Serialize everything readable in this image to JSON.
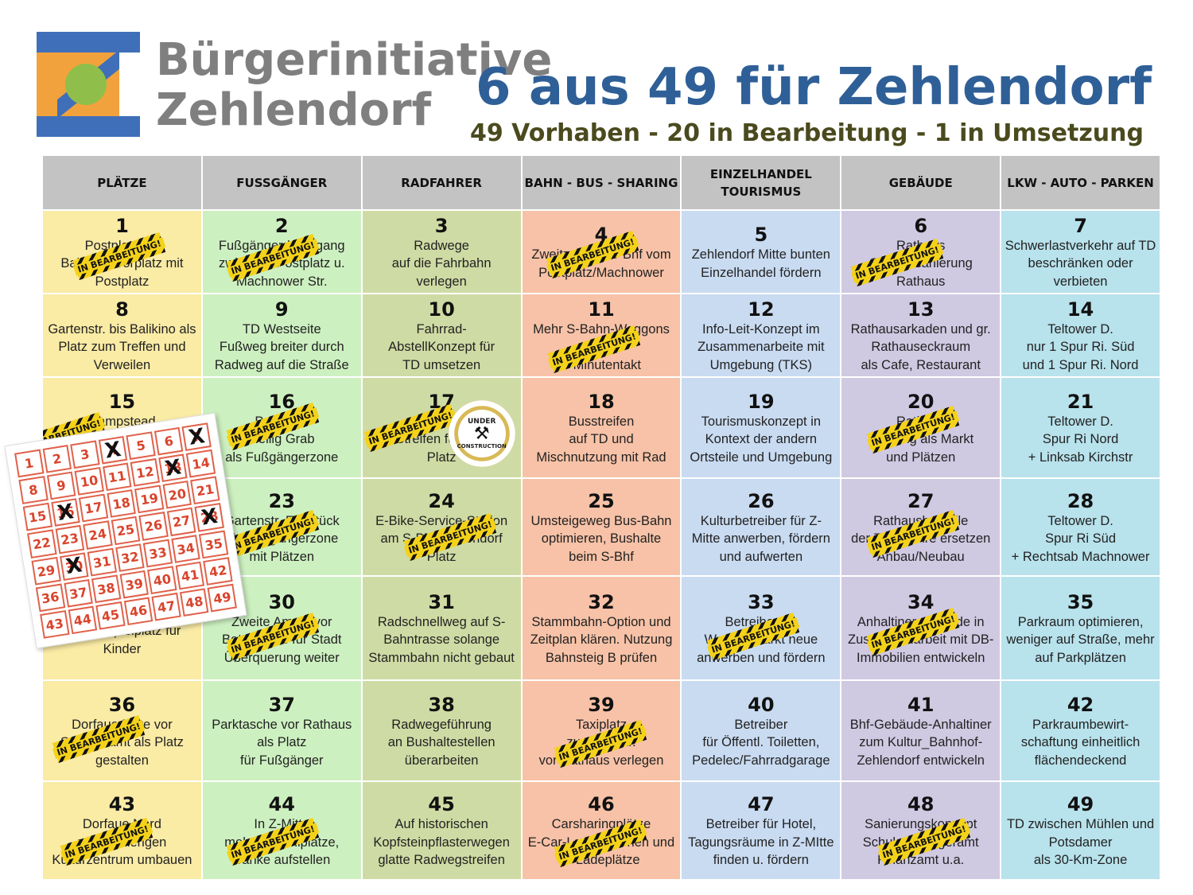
{
  "logo": {
    "line1": "Bürgerinitiative",
    "line2": "Zehlendorf"
  },
  "title": "6 aus 49 für Zehlendorf",
  "subtitle": "49 Vorhaben - 20 in Bearbeitung - 1 in Umsetzung",
  "colors": {
    "title": "#2f5f97",
    "subtitle": "#4a4a1e",
    "logo_text": "#7f7f7f",
    "logo_blue": "#3f6fb8",
    "logo_orange": "#f2a23c",
    "logo_green": "#8fbf4a",
    "tape": "#f4d21a"
  },
  "columns": [
    "PLÄTZE",
    "FUSSGÄNGER",
    "RADFAHRER",
    "BAHN - BUS - SHARING",
    "EINZELHANDEL\nTOURISMUS",
    "GEBÄUDE",
    "LKW - AUTO - PARKEN"
  ],
  "tape_label": "IN BEARBEITUNG!",
  "badge": {
    "top": "UNDER",
    "bottom": "CONSTRUCTION",
    "icon": "worker-icon"
  },
  "items": [
    {
      "n": "1",
      "t": "Postplatz als\nBahnhofsvorplatz mit\nPostplatz"
    },
    {
      "n": "2",
      "t": "Fußgängerdurchgang\nzwischen Postplatz u.\nMachnower Str."
    },
    {
      "n": "3",
      "t": "Radwege\nauf die Fahrbahn\nverlegen"
    },
    {
      "n": "4",
      "t": "Zweitzugang S-Bhf vom\nPostplatz/Machnower"
    },
    {
      "n": "5",
      "t": "Zehlendorf Mitte bunten\nEinzelhandel fördern"
    },
    {
      "n": "6",
      "t": "Rathaus Gesamtsanierung\nRathaus"
    },
    {
      "n": "7",
      "t": "Schwerlastverkehr auf TD\nbeschränken oder\nverbieten"
    },
    {
      "n": "8",
      "t": "Gartenstr. bis Balikino als\nPlatz zum Treffen und\nVerweilen"
    },
    {
      "n": "9",
      "t": "TD Westseite\nFußweg breiter durch\nRadweg auf die Straße"
    },
    {
      "n": "10",
      "t": "Fahrrad-\nAbstellKonzept für\nTD umsetzen"
    },
    {
      "n": "11",
      "t": "Mehr S-Bahn-Waggons\nund\n5-Minutentakt"
    },
    {
      "n": "12",
      "t": "Info-Leit-Konzept im\nZusammenarbeite mit\nUmgebung (TKS)"
    },
    {
      "n": "13",
      "t": "Rathausarkaden und gr.\nRathauseckraum\nals Cafe, Restaurant"
    },
    {
      "n": "14",
      "t": "Teltower D.\nnur 1 Spur Ri. Süd\nund 1 Spur Ri. Nord"
    },
    {
      "n": "15",
      "t": "Hampstead\nEcke TD als Platz\nzum Treffen"
    },
    {
      "n": "16",
      "t": "Postplatz\nHeilig Grab\nals Fußgängerzone"
    },
    {
      "n": "17",
      "t": "Anhaltiner\nStreifen für Rad\nPlatz"
    },
    {
      "n": "18",
      "t": "Busstreifen\nauf TD und\nMischnutzung mit Rad"
    },
    {
      "n": "19",
      "t": "Tourismuskonzept in\nKontext der andern\nOrtsteile und Umgebung"
    },
    {
      "n": "20",
      "t": "Rathaus\nNutzung als Markt\nund Plätzen"
    },
    {
      "n": "21",
      "t": "Teltower D.\nSpur Ri Nord\n+ Linksab Kirchstr"
    },
    {
      "n": "22",
      "t": ""
    },
    {
      "n": "23",
      "t": "Gartenstr. Endstück\nals Fußgängerzone\nmit Plätzen"
    },
    {
      "n": "24",
      "t": "E-Bike-Service-Station\nam S-Bhf-Zehlendorf\nPlatz"
    },
    {
      "n": "25",
      "t": "Umsteigeweg Bus-Bahn\noptimieren, Bushalte\nbeim S-Bhf"
    },
    {
      "n": "26",
      "t": "Kulturbetreiber für Z-\nMitte anwerben, fördern\nund aufwerten"
    },
    {
      "n": "27",
      "t": "Rathausbauteile\nder 70er Jahre ersetzen\nAnbau/Neubau"
    },
    {
      "n": "28",
      "t": "Teltower D.\nSpur Ri Süd\n+ Rechtsab Machnower"
    },
    {
      "n": "29",
      "t": "Wasserspielplatz für\nKinder"
    },
    {
      "n": "30",
      "t": "Zweite Ampel vor\nBettenhaus für Stadt\nÜberquerung weiter"
    },
    {
      "n": "31",
      "t": "Radschnellweg auf S-\nBahntrasse solange\nStammbahn nicht gebaut"
    },
    {
      "n": "32",
      "t": "Stammbahn-Option und\nZeitplan klären. Nutzung\nBahnsteig B prüfen"
    },
    {
      "n": "33",
      "t": "Betreiber für\nWochenmarkt neue\nanwerben und fördern"
    },
    {
      "n": "34",
      "t": "Anhaltiner-Gelände in\nZusammenarbeit mit DB-\nImmobilien entwickeln"
    },
    {
      "n": "35",
      "t": "Parkraum optimieren,\nweniger auf Straße, mehr\nauf Parkplätzen"
    },
    {
      "n": "36",
      "t": "Dorfaue Mitte vor\nStandesamt als Platz\ngestalten"
    },
    {
      "n": "37",
      "t": "Parktasche vor Rathaus\nals Platz\nfür Fußgänger"
    },
    {
      "n": "38",
      "t": "Radwegeführung\nan Bushaltestellen\nüberarbeiten"
    },
    {
      "n": "39",
      "t": "Taxiplatz\nzur Kirchstr.\nvor Rathaus verlegen"
    },
    {
      "n": "40",
      "t": "Betreiber\nfür Öffentl. Toiletten,\nPedelec/Fahrradgarage"
    },
    {
      "n": "41",
      "t": "Bhf-Gebäude-Anhaltiner\nzum Kultur_Bahnhof-\nZehlendorf entwickeln"
    },
    {
      "n": "42",
      "t": "Parkraumbewirt-\nschaftung einheitlich\nflächendeckend"
    },
    {
      "n": "43",
      "t": "Dorfaue Nord\nzum bisherigen\nKulturzentrum umbauen"
    },
    {
      "n": "44",
      "t": "In Z-Mitte\nmehr Verweilplätze,\nBänke aufstellen"
    },
    {
      "n": "45",
      "t": "Auf historischen\nKopfsteinpflasterwegen\nglatte Radwegstreifen"
    },
    {
      "n": "46",
      "t": "Carsharingplätze\nE-Car-Ladestationen und\nE-Ladeplätze"
    },
    {
      "n": "47",
      "t": "Betreiber für Hotel,\nTagungsräume in Z-MItte\nfinden u. fördern"
    },
    {
      "n": "48",
      "t": "Sanierungskonzept\nSchulen, Bürgeramt\nFinanzamt u.a."
    },
    {
      "n": "49",
      "t": "TD zwischen Mühlen und\nPotsdamer\nals 30-Km-Zone"
    }
  ],
  "in_progress": [
    "1",
    "2",
    "4",
    "6",
    "11",
    "15",
    "16",
    "17",
    "20",
    "23",
    "24",
    "27",
    "30",
    "33",
    "34",
    "36",
    "39",
    "43",
    "44",
    "46",
    "48"
  ],
  "ticket": {
    "numbers": [
      "1",
      "2",
      "3",
      "4",
      "5",
      "6",
      "7",
      "8",
      "9",
      "10",
      "11",
      "12",
      "13",
      "14",
      "15",
      "16",
      "17",
      "18",
      "19",
      "20",
      "21",
      "22",
      "23",
      "24",
      "25",
      "26",
      "27",
      "28",
      "29",
      "30",
      "31",
      "32",
      "33",
      "34",
      "35",
      "36",
      "37",
      "38",
      "39",
      "40",
      "41",
      "42",
      "43",
      "44",
      "45",
      "46",
      "47",
      "48",
      "49"
    ],
    "crossed": [
      "4",
      "7",
      "13",
      "16",
      "28",
      "30"
    ],
    "mark": "X"
  }
}
